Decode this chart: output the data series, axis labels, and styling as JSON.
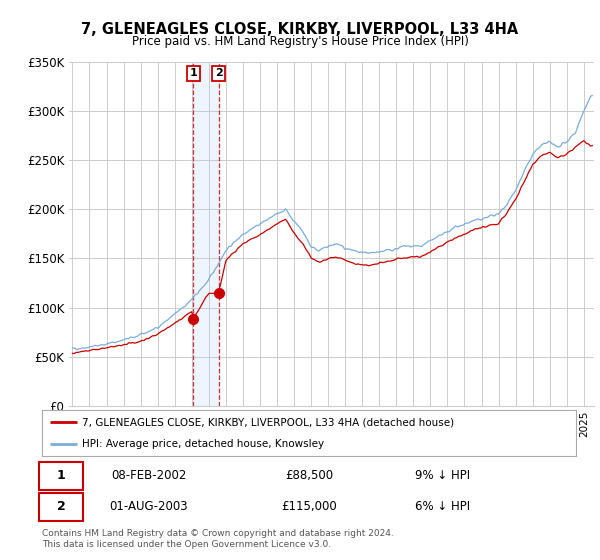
{
  "title": "7, GLENEAGLES CLOSE, KIRKBY, LIVERPOOL, L33 4HA",
  "subtitle": "Price paid vs. HM Land Registry's House Price Index (HPI)",
  "ylim": [
    0,
    350000
  ],
  "xlim_start": 1995.0,
  "xlim_end": 2025.5,
  "sale1_date": 2002.1,
  "sale1_price": 88500,
  "sale1_label": "08-FEB-2002",
  "sale1_pct": "9% ↓ HPI",
  "sale2_date": 2003.58,
  "sale2_price": 115000,
  "sale2_label": "01-AUG-2003",
  "sale2_pct": "6% ↓ HPI",
  "red_line_color": "#cc0000",
  "blue_line_color": "#7aaddd",
  "shade_color": "#ddeeff",
  "legend_label_red": "7, GLENEAGLES CLOSE, KIRKBY, LIVERPOOL, L33 4HA (detached house)",
  "legend_label_blue": "HPI: Average price, detached house, Knowsley",
  "footnote": "Contains HM Land Registry data © Crown copyright and database right 2024.\nThis data is licensed under the Open Government Licence v3.0.",
  "background_color": "#ffffff",
  "grid_color": "#cccccc",
  "hpi_anchors": [
    [
      1995.0,
      58000
    ],
    [
      1996.0,
      60000
    ],
    [
      1997.0,
      63000
    ],
    [
      1998.0,
      67000
    ],
    [
      1999.0,
      72000
    ],
    [
      2000.0,
      80000
    ],
    [
      2001.0,
      93000
    ],
    [
      2002.0,
      108000
    ],
    [
      2003.0,
      128000
    ],
    [
      2004.0,
      158000
    ],
    [
      2005.0,
      175000
    ],
    [
      2006.0,
      185000
    ],
    [
      2007.0,
      195000
    ],
    [
      2007.5,
      200000
    ],
    [
      2008.0,
      188000
    ],
    [
      2008.5,
      178000
    ],
    [
      2009.0,
      162000
    ],
    [
      2009.5,
      158000
    ],
    [
      2010.0,
      162000
    ],
    [
      2010.5,
      165000
    ],
    [
      2011.0,
      160000
    ],
    [
      2011.5,
      158000
    ],
    [
      2012.0,
      155000
    ],
    [
      2012.5,
      155000
    ],
    [
      2013.0,
      157000
    ],
    [
      2013.5,
      158000
    ],
    [
      2014.0,
      160000
    ],
    [
      2014.5,
      162000
    ],
    [
      2015.0,
      162000
    ],
    [
      2015.5,
      163000
    ],
    [
      2016.0,
      168000
    ],
    [
      2016.5,
      172000
    ],
    [
      2017.0,
      177000
    ],
    [
      2017.5,
      182000
    ],
    [
      2018.0,
      185000
    ],
    [
      2018.5,
      188000
    ],
    [
      2019.0,
      190000
    ],
    [
      2019.5,
      193000
    ],
    [
      2020.0,
      195000
    ],
    [
      2020.5,
      205000
    ],
    [
      2021.0,
      220000
    ],
    [
      2021.5,
      238000
    ],
    [
      2022.0,
      255000
    ],
    [
      2022.5,
      265000
    ],
    [
      2023.0,
      268000
    ],
    [
      2023.5,
      263000
    ],
    [
      2024.0,
      268000
    ],
    [
      2024.5,
      278000
    ],
    [
      2025.0,
      300000
    ],
    [
      2025.4,
      315000
    ]
  ],
  "red_anchors": [
    [
      1995.0,
      54000
    ],
    [
      1996.0,
      56000
    ],
    [
      1997.0,
      59000
    ],
    [
      1998.0,
      62000
    ],
    [
      1999.0,
      66000
    ],
    [
      2000.0,
      73000
    ],
    [
      2001.0,
      84000
    ],
    [
      2002.0,
      96000
    ],
    [
      2002.1,
      88500
    ],
    [
      2003.0,
      115000
    ],
    [
      2003.58,
      115000
    ],
    [
      2004.0,
      148000
    ],
    [
      2005.0,
      165000
    ],
    [
      2006.0,
      174000
    ],
    [
      2007.0,
      185000
    ],
    [
      2007.5,
      190000
    ],
    [
      2008.0,
      176000
    ],
    [
      2008.5,
      165000
    ],
    [
      2009.0,
      150000
    ],
    [
      2009.5,
      146000
    ],
    [
      2010.0,
      150000
    ],
    [
      2010.5,
      152000
    ],
    [
      2011.0,
      148000
    ],
    [
      2011.5,
      145000
    ],
    [
      2012.0,
      143000
    ],
    [
      2012.5,
      143000
    ],
    [
      2013.0,
      145000
    ],
    [
      2013.5,
      147000
    ],
    [
      2014.0,
      149000
    ],
    [
      2014.5,
      151000
    ],
    [
      2015.0,
      151000
    ],
    [
      2015.5,
      152000
    ],
    [
      2016.0,
      157000
    ],
    [
      2016.5,
      161000
    ],
    [
      2017.0,
      166000
    ],
    [
      2017.5,
      171000
    ],
    [
      2018.0,
      175000
    ],
    [
      2018.5,
      179000
    ],
    [
      2019.0,
      181000
    ],
    [
      2019.5,
      184000
    ],
    [
      2020.0,
      186000
    ],
    [
      2020.5,
      196000
    ],
    [
      2021.0,
      210000
    ],
    [
      2021.5,
      228000
    ],
    [
      2022.0,
      245000
    ],
    [
      2022.5,
      255000
    ],
    [
      2023.0,
      258000
    ],
    [
      2023.5,
      252000
    ],
    [
      2024.0,
      256000
    ],
    [
      2024.5,
      263000
    ],
    [
      2025.0,
      270000
    ],
    [
      2025.4,
      265000
    ]
  ]
}
